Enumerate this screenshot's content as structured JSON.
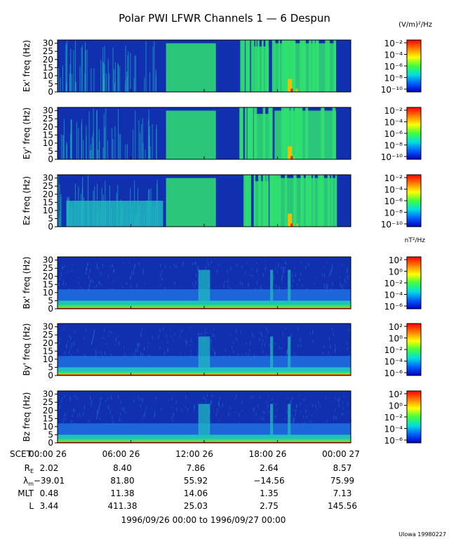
{
  "title": "Polar PWI LFWR Channels 1 — 6 Despun",
  "chart_data": {
    "type": "heatmap",
    "x_ticks": [
      "00:00 26",
      "06:00 26",
      "12:00 26",
      "18:00 26",
      "00:00 27"
    ],
    "y_ticks": [
      "0",
      "5",
      "10",
      "15",
      "20",
      "25",
      "30"
    ],
    "ylim": [
      0,
      32
    ],
    "panels": [
      {
        "ylabel": "Ex' freq (Hz)",
        "kind": "E"
      },
      {
        "ylabel": "Ey' freq (Hz)",
        "kind": "E"
      },
      {
        "ylabel": "Ez freq (Hz)",
        "kind": "Ez"
      },
      {
        "ylabel": "Bx' freq (Hz)",
        "kind": "B"
      },
      {
        "ylabel": "By' freq (Hz)",
        "kind": "B"
      },
      {
        "ylabel": "Bz freq (Hz)",
        "kind": "B"
      }
    ],
    "colorbars": {
      "E": {
        "unit": "(V/m)²/Hz",
        "ticks": [
          "10⁻²",
          "10⁻⁴",
          "10⁻⁶",
          "10⁻⁸",
          "10⁻¹⁰"
        ]
      },
      "B": {
        "unit": "nT²/Hz",
        "ticks": [
          "10²",
          "10⁰",
          "10⁻²",
          "10⁻⁴",
          "10⁻⁶"
        ]
      }
    },
    "colors": {
      "bg": "#1030b0",
      "low": "#2070e0",
      "mid": "#20c0c0",
      "high": "#30e070",
      "hot": "#f0c000",
      "max": "#e02000"
    }
  },
  "ephemeris": {
    "scet_label": "SCET",
    "rows": [
      {
        "label": "R",
        "sub": "E",
        "values": [
          "2.02",
          "8.40",
          "7.86",
          "2.64",
          "8.57"
        ]
      },
      {
        "label": "λ",
        "sub": "m",
        "values": [
          "−39.01",
          "81.80",
          "55.92",
          "−14.56",
          "75.99"
        ]
      },
      {
        "label": "MLT",
        "sub": "",
        "values": [
          "0.48",
          "11.38",
          "14.06",
          "1.35",
          "7.13"
        ]
      },
      {
        "label": "L",
        "sub": "",
        "values": [
          "3.44",
          "411.38",
          "25.03",
          "2.75",
          "145.56"
        ]
      }
    ]
  },
  "date_range": "1996/09/26 00:00 to 1996/09/27 00:00",
  "footer": "UIowa 19980227"
}
